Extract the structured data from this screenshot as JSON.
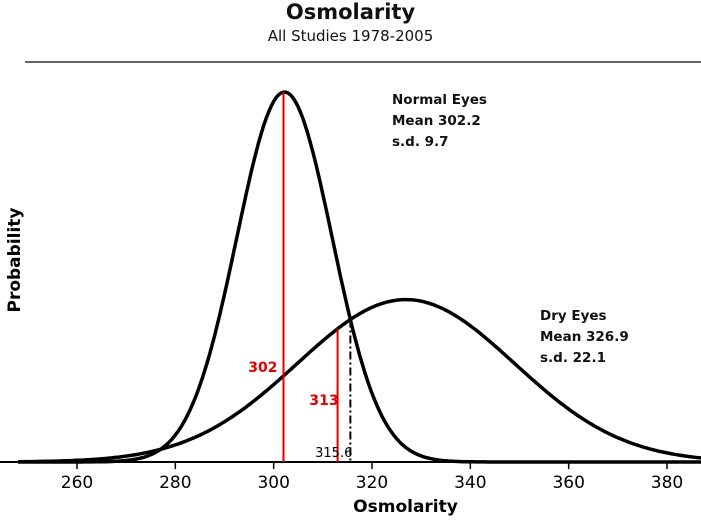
{
  "chart_data": {
    "type": "line",
    "title": "Osmolarity",
    "subtitle": "All Studies 1978-2005",
    "xlabel": "Osmolarity",
    "ylabel": "Probability",
    "xlim": [
      248,
      390
    ],
    "xticks": [
      260,
      280,
      300,
      320,
      340,
      360,
      380
    ],
    "series": [
      {
        "name": "Normal Eyes",
        "mean": 302.2,
        "sd": 9.7,
        "label_lines": [
          "Normal Eyes",
          "Mean 302.2",
          "s.d. 9.7"
        ],
        "color": "#000000"
      },
      {
        "name": "Dry Eyes",
        "mean": 326.9,
        "sd": 22.1,
        "label_lines": [
          "Dry Eyes",
          "Mean 326.9",
          "s.d. 22.1"
        ],
        "color": "#000000"
      }
    ],
    "markers": [
      {
        "x": 302,
        "label": "302",
        "color": "#e00000",
        "to": "Normal Eyes"
      },
      {
        "x": 313,
        "label": "313",
        "color": "#e00000",
        "to": "Dry Eyes"
      },
      {
        "x": 315.6,
        "label": "315.6",
        "color": "#000000",
        "style": "dash-dot"
      }
    ]
  }
}
